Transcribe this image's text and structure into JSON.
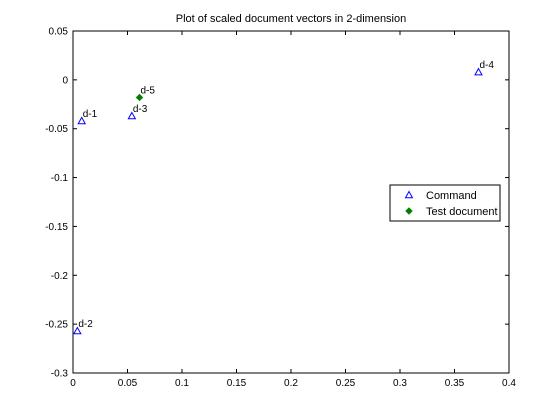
{
  "chart_data": {
    "type": "scatter",
    "title": "Plot of scaled document vectors in 2-dimension",
    "xlabel": "",
    "ylabel": "",
    "xlim": [
      0,
      0.4
    ],
    "ylim": [
      -0.3,
      0.05
    ],
    "x_ticks": [
      0,
      0.05,
      0.1,
      0.15,
      0.2,
      0.25,
      0.3,
      0.35,
      0.4
    ],
    "x_tick_labels": [
      "0",
      "0.05",
      "0.1",
      "0.15",
      "0.2",
      "0.25",
      "0.3",
      "0.35",
      "0.4"
    ],
    "y_ticks": [
      -0.3,
      -0.25,
      -0.2,
      -0.15,
      -0.1,
      -0.05,
      0,
      0.05
    ],
    "y_tick_labels": [
      "-0.3",
      "-0.25",
      "-0.2",
      "-0.15",
      "-0.1",
      "-0.05",
      "0",
      "0.05"
    ],
    "grid": false,
    "legend_position": "right",
    "series": [
      {
        "name": "Command",
        "marker": "triangle",
        "color": "#0000ff",
        "points": [
          {
            "label": "d-1",
            "x": 0.008,
            "y": -0.042
          },
          {
            "label": "d-2",
            "x": 0.004,
            "y": -0.257
          },
          {
            "label": "d-3",
            "x": 0.054,
            "y": -0.037
          },
          {
            "label": "d-4",
            "x": 0.372,
            "y": 0.008
          }
        ]
      },
      {
        "name": "Test document",
        "marker": "diamond",
        "color": "#008000",
        "points": [
          {
            "label": "d-5",
            "x": 0.061,
            "y": -0.018
          }
        ]
      }
    ]
  }
}
